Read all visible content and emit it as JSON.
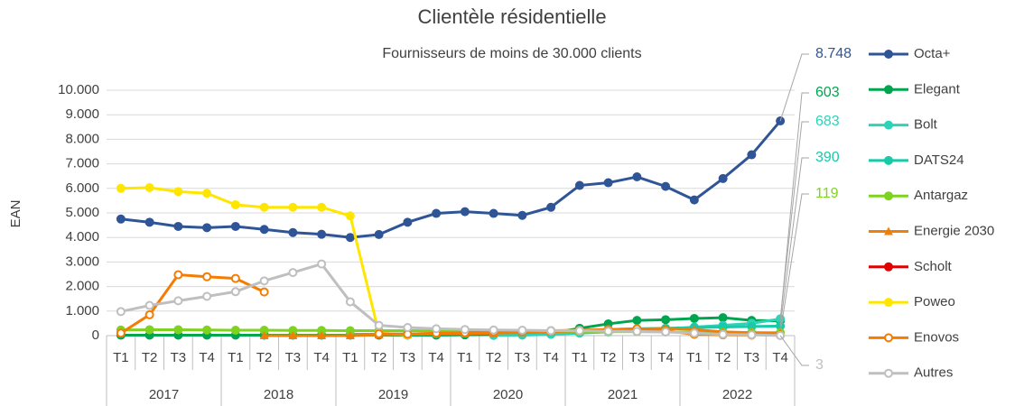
{
  "chart_data": {
    "type": "line",
    "title": "Clientèle résidentielle",
    "subtitle": "Fournisseurs de moins de 30.000 clients",
    "y_label": "EAN",
    "categories": [
      "T1",
      "T2",
      "T3",
      "T4",
      "T1",
      "T2",
      "T3",
      "T4",
      "T1",
      "T2",
      "T3",
      "T4",
      "T1",
      "T2",
      "T3",
      "T4",
      "T1",
      "T2",
      "T3",
      "T4",
      "T1",
      "T2",
      "T3",
      "T4"
    ],
    "groups": [
      "2017",
      "2018",
      "2019",
      "2020",
      "2021",
      "2022"
    ],
    "ylim": [
      0,
      10000
    ],
    "yticks": [
      0,
      {
        "value": 1000,
        "label": "1.000"
      },
      {
        "value": 2000,
        "label": "2.000"
      },
      {
        "value": 3000,
        "label": "3.000"
      },
      {
        "value": 4000,
        "label": "4.000"
      },
      {
        "value": 5000,
        "label": "5.000"
      },
      {
        "value": 6000,
        "label": "6.000"
      },
      {
        "value": 7000,
        "label": "7.000"
      },
      {
        "value": 8000,
        "label": "8.000"
      },
      {
        "value": 9000,
        "label": "9.000"
      },
      {
        "value": 10000,
        "label": "10.000"
      }
    ],
    "grid": true,
    "legend": "right",
    "series": [
      {
        "name": "Octa+",
        "color": "#2f5597",
        "marker": "circle",
        "values": [
          4750,
          4620,
          4450,
          4400,
          4450,
          4330,
          4200,
          4130,
          4000,
          4120,
          4620,
          4980,
          5050,
          4980,
          4900,
          5230,
          6120,
          6230,
          6470,
          6080,
          5530,
          6400,
          7370,
          8748
        ],
        "value_labels": [
          null,
          null,
          null,
          null,
          null,
          null,
          null,
          null,
          null,
          null,
          null,
          null,
          null,
          null,
          null,
          null,
          null,
          null,
          null,
          null,
          null,
          null,
          null,
          "8.748"
        ]
      },
      {
        "name": "Elegant",
        "color": "#00a550",
        "marker": "circle",
        "values": [
          20,
          20,
          20,
          20,
          20,
          20,
          20,
          20,
          20,
          20,
          20,
          20,
          30,
          40,
          60,
          100,
          300,
          480,
          620,
          650,
          700,
          730,
          620,
          603
        ],
        "value_labels": [
          null,
          null,
          null,
          null,
          null,
          null,
          null,
          null,
          null,
          null,
          null,
          null,
          null,
          null,
          null,
          null,
          null,
          null,
          null,
          null,
          null,
          null,
          null,
          "603"
        ]
      },
      {
        "name": "Bolt",
        "color": "#2ed3b7",
        "marker": "circle",
        "values": [
          null,
          null,
          null,
          null,
          null,
          null,
          null,
          null,
          null,
          null,
          null,
          null,
          null,
          10,
          20,
          50,
          100,
          150,
          200,
          250,
          350,
          420,
          500,
          683
        ],
        "value_labels": [
          null,
          null,
          null,
          null,
          null,
          null,
          null,
          null,
          null,
          null,
          null,
          null,
          null,
          null,
          null,
          null,
          null,
          null,
          null,
          null,
          null,
          null,
          null,
          "683"
        ]
      },
      {
        "name": "DATS24",
        "color": "#19c9a8",
        "marker": "circle",
        "values": [
          null,
          null,
          null,
          null,
          null,
          null,
          null,
          null,
          50,
          60,
          70,
          80,
          100,
          120,
          150,
          180,
          220,
          250,
          280,
          300,
          330,
          350,
          370,
          390
        ],
        "value_labels": [
          null,
          null,
          null,
          null,
          null,
          null,
          null,
          null,
          null,
          null,
          null,
          null,
          null,
          null,
          null,
          null,
          null,
          null,
          null,
          null,
          null,
          null,
          null,
          "390"
        ]
      },
      {
        "name": "Antargaz",
        "color": "#7ed321",
        "marker": "circle",
        "values": [
          230,
          240,
          240,
          230,
          220,
          220,
          210,
          210,
          200,
          200,
          200,
          190,
          190,
          180,
          180,
          170,
          170,
          160,
          160,
          150,
          140,
          130,
          120,
          119
        ],
        "value_labels": [
          null,
          null,
          null,
          null,
          null,
          null,
          null,
          null,
          null,
          null,
          null,
          null,
          null,
          null,
          null,
          null,
          null,
          null,
          null,
          null,
          null,
          null,
          null,
          "119"
        ]
      },
      {
        "name": "Energie 2030",
        "color": "#f07f09",
        "marker": "triangle",
        "values": [
          null,
          null,
          null,
          null,
          null,
          0,
          0,
          0,
          0,
          30,
          50,
          70,
          80,
          100,
          130,
          160,
          200,
          230,
          260,
          300,
          250,
          150,
          120,
          100
        ]
      },
      {
        "name": "Scholt",
        "color": "#e00000",
        "marker": "circle",
        "values": [
          null,
          null,
          null,
          null,
          null,
          null,
          null,
          null,
          null,
          null,
          null,
          null,
          null,
          null,
          null,
          null,
          null,
          null,
          null,
          null,
          null,
          null,
          null,
          null
        ]
      },
      {
        "name": "Poweo",
        "color": "#ffe600",
        "marker": "circle",
        "values": [
          6000,
          6030,
          5870,
          5800,
          5330,
          5230,
          5230,
          5230,
          4880,
          100,
          30,
          null,
          null,
          null,
          null,
          null,
          null,
          null,
          null,
          null,
          null,
          null,
          null,
          null
        ]
      },
      {
        "name": "Enovos",
        "color": "#f57c00",
        "marker": "open-circle",
        "values": [
          100,
          850,
          2480,
          2400,
          2330,
          1780,
          null,
          null,
          null,
          80,
          60,
          100,
          120,
          150,
          180,
          200,
          220,
          250,
          280,
          200,
          50,
          30,
          20,
          null
        ]
      },
      {
        "name": "Autres",
        "color": "#bfbfbf",
        "marker": "open-circle",
        "values": [
          980,
          1230,
          1420,
          1600,
          1790,
          2230,
          2570,
          2920,
          1380,
          420,
          330,
          280,
          250,
          230,
          220,
          200,
          200,
          180,
          170,
          150,
          100,
          50,
          30,
          3
        ],
        "value_labels": [
          null,
          null,
          null,
          null,
          null,
          null,
          null,
          null,
          null,
          null,
          null,
          null,
          null,
          null,
          null,
          null,
          null,
          null,
          null,
          null,
          null,
          null,
          null,
          "3"
        ]
      }
    ]
  }
}
